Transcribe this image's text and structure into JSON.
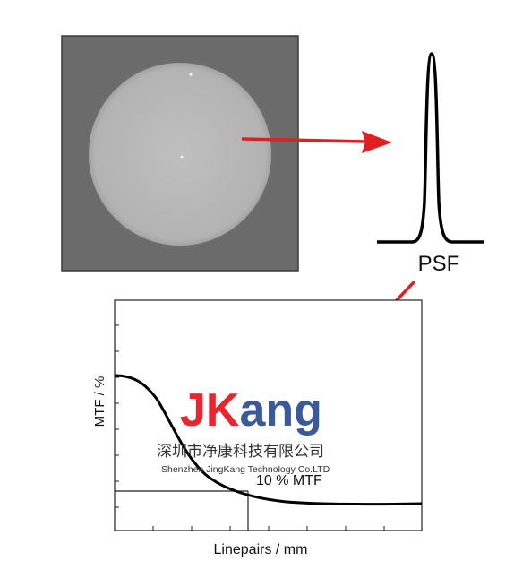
{
  "psf": {
    "label": "PSF"
  },
  "mtf_plot": {
    "ylabel": "MTF / %",
    "xlabel": "Linepairs / mm",
    "annotation": "10 % MTF"
  },
  "watermark": {
    "brand_j": "J",
    "brand_k": "K",
    "brand_rest": "ang",
    "company_cn": "深圳市净康科技有限公司",
    "company_en": "Shenzhen JingKang Technology Co.LTD"
  },
  "colors": {
    "arrow": "#e02020",
    "brand_red": "#e8262e",
    "brand_blue": "#3a5a9a"
  }
}
